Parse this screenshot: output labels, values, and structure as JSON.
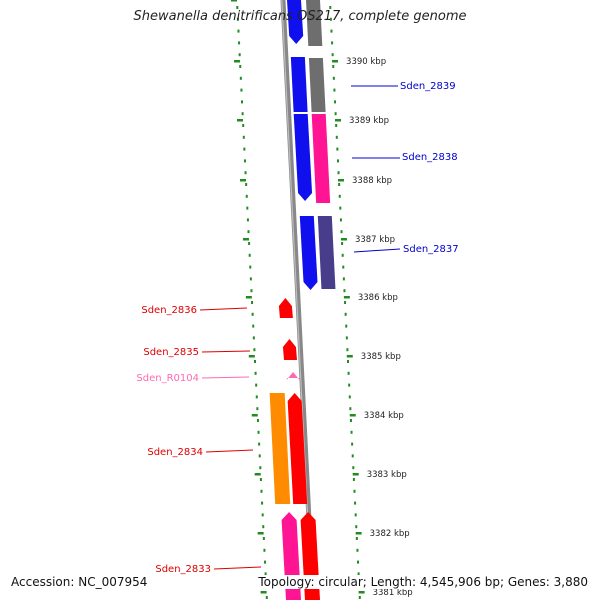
{
  "title": "Shewanella denitrificans OS217, complete genome",
  "accession_text": "Accession: NC_007954",
  "summary_text": "Topology: circular; Length: 4,545,906 bp; Genes: 3,880",
  "colors": {
    "backbone": "#888888",
    "tick_green": "#228B22",
    "blue_gene": "#1010ee",
    "grey_gene": "#6e6e6e",
    "pink_gene": "#ff1493",
    "slate_gene": "#483d8b",
    "red_gene": "#ff0000",
    "orange_gene": "#ff8c00",
    "rna_pink": "#ff69b4",
    "label_blue": "#0000cc",
    "label_red": "#dd0000",
    "label_pink": "#ff69b4"
  },
  "scale": {
    "ticks": [
      {
        "label": "3390 kbp"
      },
      {
        "label": "3389 kbp"
      },
      {
        "label": "3388 kbp"
      },
      {
        "label": "3387 kbp"
      },
      {
        "label": "3386 kbp"
      },
      {
        "label": "3385 kbp"
      },
      {
        "label": "3384 kbp"
      },
      {
        "label": "3383 kbp"
      },
      {
        "label": "3382 kbp"
      },
      {
        "label": "3381 kbp"
      }
    ]
  },
  "gene_labels": [
    {
      "text": "Sden_2839",
      "color": "label_blue"
    },
    {
      "text": "Sden_2838",
      "color": "label_blue"
    },
    {
      "text": "Sden_2837",
      "color": "label_blue"
    },
    {
      "text": "Sden_2836",
      "color": "label_red"
    },
    {
      "text": "Sden_2835",
      "color": "label_red"
    },
    {
      "text": "Sden_R0104",
      "color": "label_pink"
    },
    {
      "text": "Sden_2834",
      "color": "label_red"
    },
    {
      "text": "Sden_2833",
      "color": "label_red"
    }
  ]
}
